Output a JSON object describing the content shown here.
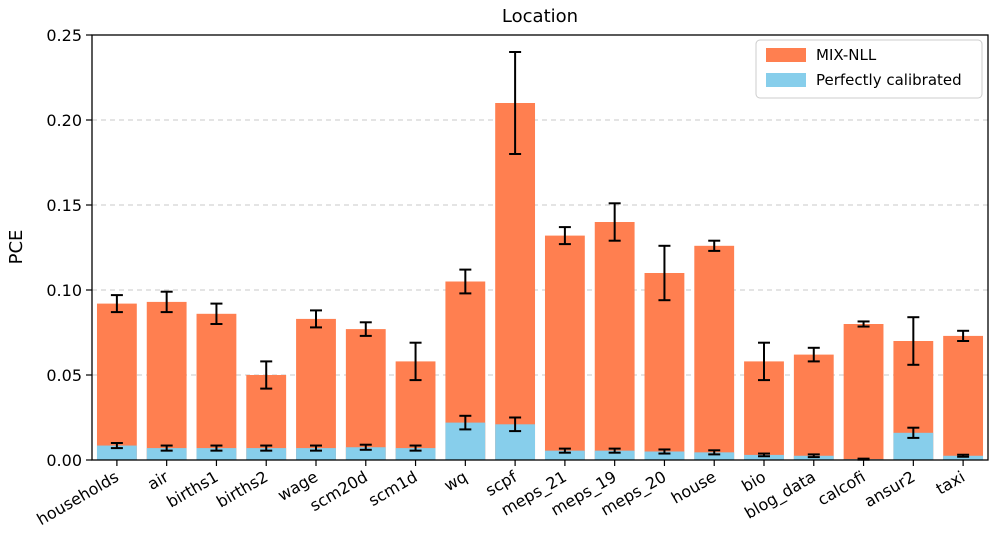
{
  "chart_data": {
    "type": "bar",
    "stacking": "overlay",
    "title": "Location",
    "xlabel": "",
    "ylabel": "PCE",
    "ylim": [
      0,
      0.25
    ],
    "yticks": [
      0.0,
      0.05,
      0.1,
      0.15,
      0.2,
      0.25
    ],
    "ytick_labels": [
      "0.00",
      "0.05",
      "0.10",
      "0.15",
      "0.20",
      "0.25"
    ],
    "grid": "y-dashed",
    "legend_position": "top-right",
    "categories": [
      "households",
      "air",
      "births1",
      "births2",
      "wage",
      "scm20d",
      "scm1d",
      "wq",
      "scpf",
      "meps_21",
      "meps_19",
      "meps_20",
      "house",
      "bio",
      "blog_data",
      "calcofi",
      "ansur2",
      "taxi"
    ],
    "series": [
      {
        "name": "MIX-NLL",
        "color": "#ff7f50",
        "values": [
          0.092,
          0.093,
          0.086,
          0.05,
          0.083,
          0.077,
          0.058,
          0.105,
          0.21,
          0.132,
          0.14,
          0.11,
          0.126,
          0.058,
          0.062,
          0.08,
          0.07,
          0.073
        ],
        "errors": [
          0.005,
          0.006,
          0.006,
          0.008,
          0.005,
          0.004,
          0.011,
          0.007,
          0.03,
          0.005,
          0.011,
          0.016,
          0.003,
          0.011,
          0.004,
          0.0015,
          0.014,
          0.003
        ]
      },
      {
        "name": "Perfectly calibrated",
        "color": "#87ceeb",
        "values": [
          0.0085,
          0.007,
          0.007,
          0.007,
          0.007,
          0.0075,
          0.007,
          0.022,
          0.021,
          0.0055,
          0.0055,
          0.005,
          0.0045,
          0.003,
          0.0025,
          0.0005,
          0.016,
          0.0025
        ],
        "errors": [
          0.0015,
          0.0015,
          0.0015,
          0.0015,
          0.0015,
          0.0015,
          0.0015,
          0.004,
          0.004,
          0.0012,
          0.0012,
          0.0012,
          0.0012,
          0.0008,
          0.0008,
          0.0003,
          0.003,
          0.0006
        ]
      }
    ]
  }
}
